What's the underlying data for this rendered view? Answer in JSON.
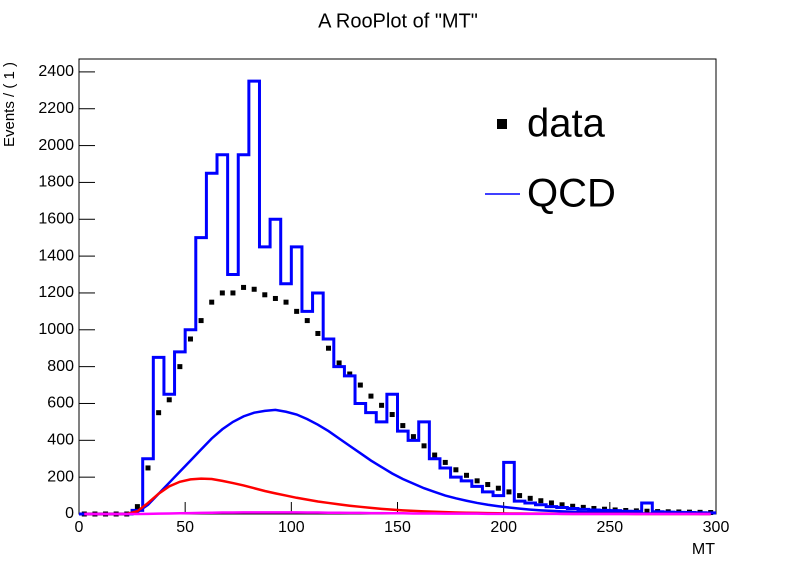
{
  "chart_data": {
    "type": "line",
    "title": "A RooPlot of \"MT\"",
    "x_label": "MT",
    "y_label": "Events / ( 1 )",
    "xlim": [
      0,
      300
    ],
    "xticks": [
      0,
      50,
      100,
      150,
      200,
      250,
      300
    ],
    "ylim": [
      0,
      2470
    ],
    "yticks": [
      0,
      200,
      400,
      600,
      800,
      1000,
      1200,
      1400,
      1600,
      1800,
      2000,
      2200,
      2400
    ],
    "x": [
      2.5,
      7.5,
      12.5,
      17.5,
      22.5,
      27.5,
      32.5,
      37.5,
      42.5,
      47.5,
      52.5,
      57.5,
      62.5,
      67.5,
      72.5,
      77.5,
      82.5,
      87.5,
      92.5,
      97.5,
      102.5,
      107.5,
      112.5,
      117.5,
      122.5,
      127.5,
      132.5,
      137.5,
      142.5,
      147.5,
      152.5,
      157.5,
      162.5,
      167.5,
      172.5,
      177.5,
      182.5,
      187.5,
      192.5,
      197.5,
      202.5,
      207.5,
      212.5,
      217.5,
      222.5,
      227.5,
      232.5,
      237.5,
      242.5,
      247.5,
      252.5,
      257.5,
      262.5,
      267.5,
      272.5,
      277.5,
      282.5,
      287.5,
      292.5,
      297.5
    ],
    "legend_position": "upper right",
    "series": [
      {
        "name": "data",
        "color": "#000000",
        "style": "points",
        "values": [
          0,
          0,
          0,
          0,
          0,
          40,
          250,
          550,
          620,
          800,
          950,
          1050,
          1150,
          1200,
          1200,
          1230,
          1220,
          1190,
          1170,
          1150,
          1100,
          1050,
          980,
          900,
          820,
          760,
          700,
          640,
          590,
          540,
          480,
          420,
          370,
          320,
          280,
          240,
          210,
          180,
          160,
          140,
          120,
          100,
          85,
          72,
          60,
          50,
          42,
          36,
          30,
          26,
          22,
          19,
          17,
          15,
          13,
          12,
          11,
          10,
          9,
          8
        ]
      },
      {
        "name": "QCD",
        "color": "#0000ff",
        "style": "step",
        "values": [
          0,
          0,
          0,
          0,
          0,
          20,
          300,
          850,
          650,
          880,
          1000,
          1500,
          1850,
          1950,
          1300,
          1950,
          2350,
          1450,
          1600,
          1250,
          1450,
          1100,
          1200,
          950,
          800,
          750,
          600,
          550,
          500,
          650,
          450,
          400,
          500,
          300,
          250,
          200,
          180,
          150,
          120,
          100,
          280,
          70,
          60,
          50,
          40,
          35,
          30,
          25,
          22,
          20,
          18,
          15,
          14,
          60,
          12,
          10,
          9,
          8,
          7,
          6
        ]
      },
      {
        "color": "#0000ff",
        "style": "curve",
        "values": [
          0,
          0,
          0,
          0,
          0,
          10,
          50,
          110,
          170,
          230,
          290,
          350,
          410,
          460,
          500,
          530,
          550,
          560,
          565,
          555,
          540,
          515,
          485,
          450,
          410,
          370,
          330,
          290,
          255,
          220,
          190,
          165,
          140,
          120,
          100,
          85,
          72,
          60,
          50,
          42,
          35,
          29,
          24,
          20,
          17,
          14,
          12,
          10,
          8,
          7,
          6,
          5,
          4,
          3,
          3,
          2,
          2,
          2,
          1,
          1
        ]
      },
      {
        "color": "#ff0000",
        "style": "curve",
        "values": [
          0,
          0,
          0,
          0,
          0,
          15,
          60,
          110,
          150,
          175,
          188,
          192,
          190,
          180,
          168,
          155,
          140,
          125,
          112,
          100,
          88,
          78,
          68,
          60,
          52,
          45,
          39,
          33,
          28,
          24,
          20,
          17,
          14,
          12,
          10,
          8,
          7,
          6,
          5,
          4,
          3,
          3,
          2,
          2,
          2,
          1,
          1,
          1,
          1,
          1,
          1,
          1,
          0,
          0,
          0,
          0,
          0,
          0,
          0,
          0
        ]
      },
      {
        "color": "#ff00ff",
        "style": "curve",
        "values": [
          0,
          0,
          0,
          0,
          0,
          0,
          1,
          2,
          3,
          4,
          5,
          6,
          7,
          8,
          8,
          9,
          9,
          9,
          9,
          9,
          9,
          8,
          8,
          7,
          7,
          6,
          6,
          5,
          5,
          4,
          4,
          3,
          3,
          3,
          2,
          2,
          2,
          2,
          1,
          1,
          1,
          1,
          1,
          1,
          1,
          1,
          0,
          0,
          0,
          0,
          0,
          0,
          0,
          0,
          0,
          0,
          0,
          0,
          0,
          0
        ]
      }
    ]
  }
}
